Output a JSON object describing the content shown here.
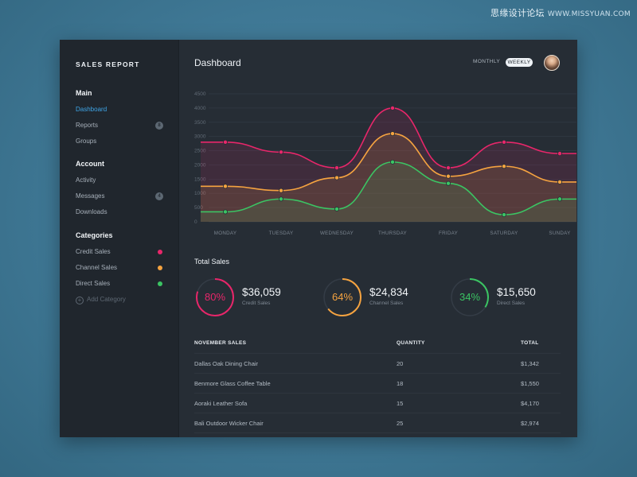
{
  "watermark": {
    "text": "思缘设计论坛",
    "url": "WWW.MISSYUAN.COM"
  },
  "app": {
    "title": "SALES REPORT"
  },
  "sidebar": {
    "main_title": "Main",
    "main_items": [
      {
        "label": "Dashboard"
      },
      {
        "label": "Reports",
        "badge": "8"
      },
      {
        "label": "Groups"
      }
    ],
    "account_title": "Account",
    "account_items": [
      {
        "label": "Activity"
      },
      {
        "label": "Messages",
        "badge": "4"
      },
      {
        "label": "Downloads"
      }
    ],
    "categories_title": "Categories",
    "category_items": [
      {
        "label": "Credit Sales",
        "color": "#e8266a"
      },
      {
        "label": "Channel Sales",
        "color": "#f5a340"
      },
      {
        "label": "Direct Sales",
        "color": "#3bc463"
      }
    ],
    "add_category_label": "Add Category"
  },
  "header": {
    "title": "Dashboard",
    "toggle_monthly": "MONTHLY",
    "toggle_weekly": "WEEKLY"
  },
  "chart_data": {
    "type": "area",
    "categories": [
      "MONDAY",
      "TUESDAY",
      "WEDNESDAY",
      "THURSDAY",
      "FRIDAY",
      "SATURDAY",
      "SUNDAY"
    ],
    "yticks": [
      0,
      500,
      1000,
      1500,
      2000,
      2500,
      3000,
      3500,
      4000,
      4500
    ],
    "ylim": [
      0,
      4500
    ],
    "series": [
      {
        "name": "Credit Sales",
        "color": "#e8266a",
        "values": [
          2800,
          2450,
          1900,
          4000,
          1900,
          2800,
          2400
        ]
      },
      {
        "name": "Channel Sales",
        "color": "#f5a340",
        "values": [
          1250,
          1100,
          1550,
          3100,
          1600,
          1950,
          1400
        ]
      },
      {
        "name": "Direct Sales",
        "color": "#3bc463",
        "values": [
          350,
          800,
          450,
          2100,
          1350,
          250,
          800
        ]
      }
    ]
  },
  "total_sales": {
    "title": "Total Sales",
    "stats": [
      {
        "percent": "80%",
        "fraction": 0.8,
        "value": "$36,059",
        "label": "Credit Sales",
        "color": "#e8266a"
      },
      {
        "percent": "64%",
        "fraction": 0.64,
        "value": "$24,834",
        "label": "Channel Sales",
        "color": "#f5a340"
      },
      {
        "percent": "34%",
        "fraction": 0.34,
        "value": "$15,650",
        "label": "Direct Sales",
        "color": "#3bc463"
      }
    ]
  },
  "table": {
    "headers": [
      "NOVEMBER SALES",
      "QUANTITY",
      "TOTAL"
    ],
    "rows": [
      [
        "Dallas Oak Dining Chair",
        "20",
        "$1,342"
      ],
      [
        "Benmore Glass Coffee Table",
        "18",
        "$1,550"
      ],
      [
        "Aoraki Leather Sofa",
        "15",
        "$4,170"
      ],
      [
        "Bali Outdoor Wicker Chair",
        "25",
        "$2,974"
      ]
    ]
  }
}
